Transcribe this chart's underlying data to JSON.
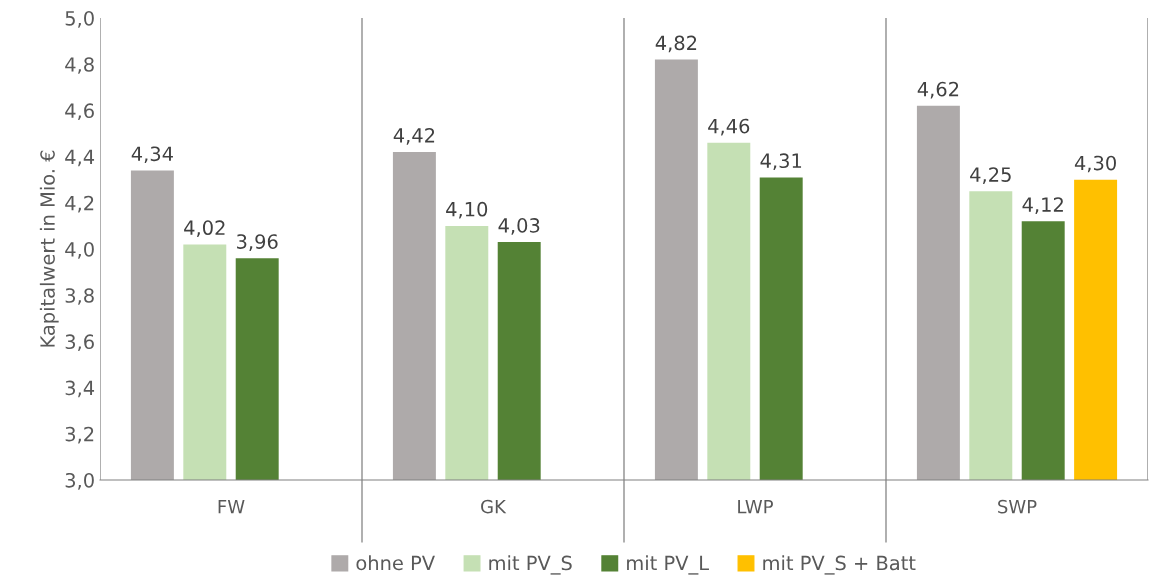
{
  "chart_data": {
    "type": "bar",
    "ylabel": "Kapitalwert in Mio. €",
    "categories": [
      "FW",
      "GK",
      "LWP",
      "SWP"
    ],
    "series": [
      {
        "name": "ohne PV",
        "color": "#aeaaaa",
        "values": [
          4.34,
          4.42,
          4.82,
          4.62
        ],
        "value_labels": [
          "4,34",
          "4,42",
          "4,82",
          "4,62"
        ]
      },
      {
        "name": "mit PV_S",
        "color": "#c5e0b4",
        "values": [
          4.02,
          4.1,
          4.46,
          4.25
        ],
        "value_labels": [
          "4,02",
          "4,10",
          "4,46",
          "4,25"
        ]
      },
      {
        "name": "mit PV_L",
        "color": "#548235",
        "values": [
          3.96,
          4.03,
          4.31,
          4.12
        ],
        "value_labels": [
          "3,96",
          "4,03",
          "4,31",
          "4,12"
        ]
      },
      {
        "name": "mit PV_S + Batt",
        "color": "#ffc000",
        "values": [
          null,
          null,
          null,
          4.3
        ],
        "value_labels": [
          null,
          null,
          null,
          "4,30"
        ]
      }
    ],
    "ylim": [
      3.0,
      5.0
    ],
    "yticks": [
      {
        "value": 3.0,
        "label": "3,0"
      },
      {
        "value": 3.2,
        "label": "3,2"
      },
      {
        "value": 3.4,
        "label": "3,4"
      },
      {
        "value": 3.6,
        "label": "3,6"
      },
      {
        "value": 3.8,
        "label": "3,8"
      },
      {
        "value": 4.0,
        "label": "4,0"
      },
      {
        "value": 4.2,
        "label": "4,2"
      },
      {
        "value": 4.4,
        "label": "4,4"
      },
      {
        "value": 4.6,
        "label": "4,6"
      },
      {
        "value": 4.8,
        "label": "4,8"
      },
      {
        "value": 5.0,
        "label": "5,0"
      }
    ],
    "grid": "x",
    "legend": "bottom"
  }
}
